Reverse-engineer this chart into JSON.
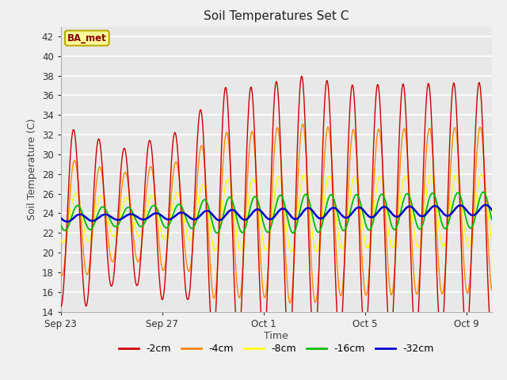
{
  "title": "Soil Temperatures Set C",
  "xlabel": "Time",
  "ylabel": "Soil Temperature (C)",
  "ylim": [
    14,
    43
  ],
  "yticks": [
    14,
    16,
    18,
    20,
    22,
    24,
    26,
    28,
    30,
    32,
    34,
    36,
    38,
    40,
    42
  ],
  "colors": {
    "-2cm": "#cc0000",
    "-4cm": "#ff8800",
    "-8cm": "#ffff00",
    "-16cm": "#00bb00",
    "-32cm": "#0000cc"
  },
  "annotation_text": "BA_met",
  "annotation_bg": "#ffff99",
  "annotation_border": "#bbaa00",
  "annotation_text_color": "#880000",
  "fig_bg_color": "#f0f0f0",
  "plot_bg_color": "#e8e8e8",
  "grid_color": "#ffffff",
  "n_days": 17,
  "xtick_labels": [
    "Sep 23",
    "Sep 27",
    "Oct 1",
    "Oct 5",
    "Oct 9"
  ],
  "xtick_positions": [
    0,
    4,
    8,
    12,
    16
  ],
  "mean_base": 23.5,
  "amp_profile_2cm": [
    9.0,
    9.0,
    7.0,
    7.0,
    8.5,
    8.5,
    13.0,
    13.0,
    13.0,
    14.0,
    14.0,
    13.0,
    13.0,
    13.0,
    13.0,
    13.0,
    13.0
  ],
  "amp_4cm_ratio": 0.65,
  "amp_8cm_ratio": 0.28,
  "amp_16cm_ratio": 0.14,
  "amp_32cm_ratio": 0.04,
  "phase_shift_4cm": 0.25,
  "phase_shift_8cm": 0.55,
  "phase_shift_16cm": 1.0,
  "phase_shift_32cm": 1.6,
  "mean_drift": 0.05,
  "linewidth": 1.0,
  "linewidth_32cm": 1.8
}
